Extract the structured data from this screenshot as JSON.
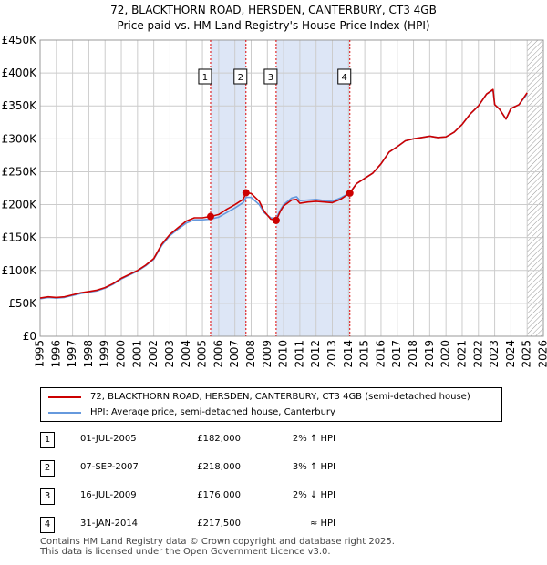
{
  "title_line1": "72, BLACKTHORN ROAD, HERSDEN, CANTERBURY, CT3 4GB",
  "title_line2": "Price paid vs. HM Land Registry's House Price Index (HPI)",
  "colors": {
    "property": "#cc0000",
    "hpi": "#6699dd",
    "shade": "#dde6f6",
    "hatch": "#999999",
    "grid": "#cccccc",
    "vline": "#dd0000"
  },
  "legend": {
    "property_label": "72, BLACKTHORN ROAD, HERSDEN, CANTERBURY, CT3 4GB (semi-detached house)",
    "hpi_label": "HPI: Average price, semi-detached house, Canterbury"
  },
  "transactions": [
    {
      "num": "1",
      "date": "01-JUL-2005",
      "price": "£182,000",
      "hpi": "2% ↑ HPI"
    },
    {
      "num": "2",
      "date": "07-SEP-2007",
      "price": "£218,000",
      "hpi": "3% ↑ HPI"
    },
    {
      "num": "3",
      "date": "16-JUL-2009",
      "price": "£176,000",
      "hpi": "2% ↓ HPI"
    },
    {
      "num": "4",
      "date": "31-JAN-2014",
      "price": "£217,500",
      "hpi": "≈ HPI"
    }
  ],
  "footer_line1": "Contains HM Land Registry data © Crown copyright and database right 2025.",
  "footer_line2": "This data is licensed under the Open Government Licence v3.0.",
  "chart_data": {
    "type": "line",
    "title": "72, BLACKTHORN ROAD, HERSDEN, CANTERBURY, CT3 4GB — Price paid vs. HM Land Registry's House Price Index (HPI)",
    "xlabel": "",
    "ylabel": "",
    "xlim": [
      1995,
      2026
    ],
    "ylim": [
      0,
      450000
    ],
    "x_ticks": [
      1995,
      1996,
      1997,
      1998,
      1999,
      2000,
      2001,
      2002,
      2003,
      2004,
      2005,
      2006,
      2007,
      2008,
      2009,
      2010,
      2011,
      2012,
      2013,
      2014,
      2015,
      2016,
      2017,
      2018,
      2019,
      2020,
      2021,
      2022,
      2023,
      2024,
      2025,
      2026
    ],
    "y_ticks": [
      0,
      50000,
      100000,
      150000,
      200000,
      250000,
      300000,
      350000,
      400000,
      450000
    ],
    "y_tick_labels": [
      "£0",
      "£50K",
      "£100K",
      "£150K",
      "£200K",
      "£250K",
      "£300K",
      "£350K",
      "£400K",
      "£450K"
    ],
    "grid": true,
    "shaded_periods": [
      [
        2005.5,
        2007.68
      ],
      [
        2009.54,
        2014.08
      ]
    ],
    "forecast_hatch_from": 2025.0,
    "series": [
      {
        "name": "72, BLACKTHORN ROAD, HERSDEN, CANTERBURY, CT3 4GB (semi-detached house)",
        "color": "#cc0000",
        "x": [
          1995.0,
          1995.5,
          1996.0,
          1996.5,
          1997.0,
          1997.5,
          1998.0,
          1998.5,
          1999.0,
          1999.5,
          2000.0,
          2000.5,
          2001.0,
          2001.5,
          2002.0,
          2002.5,
          2003.0,
          2003.5,
          2004.0,
          2004.5,
          2005.0,
          2005.5,
          2006.0,
          2006.5,
          2007.0,
          2007.5,
          2007.7,
          2008.0,
          2008.5,
          2008.8,
          2009.2,
          2009.54,
          2009.8,
          2010.0,
          2010.5,
          2010.8,
          2011.0,
          2011.5,
          2012.0,
          2012.5,
          2013.0,
          2013.5,
          2014.08,
          2014.5,
          2015.0,
          2015.5,
          2016.0,
          2016.5,
          2017.0,
          2017.5,
          2018.0,
          2018.5,
          2019.0,
          2019.5,
          2020.0,
          2020.5,
          2021.0,
          2021.5,
          2022.0,
          2022.5,
          2022.9,
          2023.0,
          2023.3,
          2023.7,
          2024.0,
          2024.5,
          2025.0
        ],
        "y": [
          58000,
          60000,
          59000,
          60000,
          63000,
          66000,
          68000,
          70000,
          74000,
          80000,
          88000,
          94000,
          100000,
          108000,
          118000,
          140000,
          155000,
          165000,
          175000,
          180000,
          180000,
          182000,
          185000,
          193000,
          200000,
          208000,
          218000,
          217000,
          205000,
          190000,
          178000,
          176000,
          190000,
          198000,
          207000,
          208000,
          202000,
          204000,
          205000,
          204000,
          203000,
          208000,
          217500,
          232000,
          240000,
          248000,
          262000,
          280000,
          288000,
          297000,
          300000,
          302000,
          304000,
          302000,
          303000,
          310000,
          322000,
          338000,
          350000,
          368000,
          375000,
          352000,
          345000,
          330000,
          346000,
          352000,
          370000
        ]
      },
      {
        "name": "HPI: Average price, semi-detached house, Canterbury",
        "color": "#6699dd",
        "x": [
          1995.0,
          1995.5,
          1996.0,
          1996.5,
          1997.0,
          1997.5,
          1998.0,
          1998.5,
          1999.0,
          1999.5,
          2000.0,
          2000.5,
          2001.0,
          2001.5,
          2002.0,
          2002.5,
          2003.0,
          2003.5,
          2004.0,
          2004.5,
          2005.0,
          2005.5,
          2006.0,
          2006.5,
          2007.0,
          2007.5,
          2007.7,
          2008.0,
          2008.5,
          2008.8,
          2009.2,
          2009.54,
          2009.8,
          2010.0,
          2010.5,
          2010.8,
          2011.0,
          2011.5,
          2012.0,
          2012.5,
          2013.0,
          2013.5,
          2014.08,
          2014.5,
          2015.0,
          2015.5,
          2016.0,
          2016.5,
          2017.0,
          2017.5,
          2018.0,
          2018.5,
          2019.0,
          2019.5,
          2020.0,
          2020.5,
          2021.0,
          2021.5,
          2022.0,
          2022.5,
          2022.9,
          2023.0,
          2023.3,
          2023.7,
          2024.0,
          2024.5,
          2025.0
        ],
        "y": [
          57000,
          59000,
          58000,
          59000,
          62000,
          65000,
          67000,
          69000,
          73000,
          79000,
          87000,
          93000,
          99000,
          107000,
          117000,
          138000,
          153000,
          163000,
          172000,
          177000,
          177000,
          178000,
          181000,
          188000,
          195000,
          203000,
          211000,
          211000,
          200000,
          188000,
          180000,
          179000,
          192000,
          200000,
          210000,
          212000,
          206000,
          207000,
          208000,
          206000,
          205000,
          210000,
          218000,
          232000,
          240000,
          248000,
          262000,
          280000,
          288000,
          297000,
          300000,
          302000,
          304000,
          302000,
          303000,
          310000,
          322000,
          338000,
          350000,
          368000,
          374000,
          352000,
          345000,
          330000,
          346000,
          352000,
          368000
        ]
      }
    ],
    "annotations": [
      {
        "label": "1",
        "x": 2005.5,
        "y": 182000
      },
      {
        "label": "2",
        "x": 2007.68,
        "y": 218000
      },
      {
        "label": "3",
        "x": 2009.54,
        "y": 176000
      },
      {
        "label": "4",
        "x": 2014.08,
        "y": 217500
      }
    ]
  }
}
